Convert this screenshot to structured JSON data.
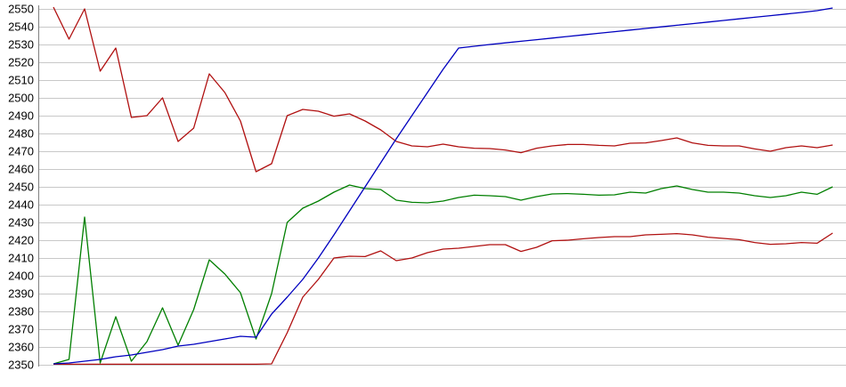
{
  "chart_data": {
    "type": "line",
    "title": "",
    "xlabel": "",
    "ylabel": "",
    "legend_position": "none",
    "grid": true,
    "grid_color": "#c8c8c8",
    "axis_line_color": "#808080",
    "background_color": "#ffffff",
    "x_axis": {
      "labels_visible": false,
      "point_count": 51
    },
    "y_axis": {
      "min": 2350,
      "max": 2550,
      "tick_step": 10,
      "tick_labels": [
        "2350",
        "2360",
        "2370",
        "2380",
        "2390",
        "2400",
        "2410",
        "2420",
        "2430",
        "2440",
        "2450",
        "2460",
        "2470",
        "2480",
        "2490",
        "2500",
        "2510",
        "2520",
        "2530",
        "2540",
        "2550"
      ]
    },
    "series": [
      {
        "name": "upper-red-line",
        "color": "#b01010",
        "values": [
          2551,
          2533,
          2550,
          2515,
          2528,
          2489,
          2490,
          2500,
          2475.5,
          2483,
          2513.5,
          2503,
          2487,
          2458.5,
          2463,
          2490,
          2493.5,
          2492.5,
          2489.7,
          2491,
          2487,
          2482,
          2475.5,
          2473,
          2472.5,
          2474,
          2472.5,
          2471.7,
          2471.5,
          2470.7,
          2469.2,
          2471.7,
          2473,
          2473.8,
          2473.8,
          2473.3,
          2473,
          2474.5,
          2474.7,
          2476,
          2477.5,
          2474.7,
          2473.3,
          2473,
          2473,
          2471.3,
          2470,
          2472,
          2473,
          2472,
          2473.5
        ]
      },
      {
        "name": "lower-red-line",
        "color": "#b01010",
        "values": [
          2350.3,
          2350.3,
          2350.3,
          2350.3,
          2350.3,
          2350.3,
          2350.3,
          2350.3,
          2350.3,
          2350.3,
          2350.3,
          2350.3,
          2350.3,
          2350.3,
          2350.5,
          2368,
          2388,
          2398,
          2410,
          2411,
          2410.8,
          2414,
          2408.5,
          2410,
          2413,
          2415,
          2415.5,
          2416.5,
          2417.5,
          2417.5,
          2413.7,
          2416,
          2419.7,
          2420,
          2420.8,
          2421.5,
          2422,
          2422,
          2423,
          2423.3,
          2423.7,
          2423,
          2421.7,
          2421,
          2420.3,
          2418.7,
          2417.7,
          2418,
          2418.7,
          2418.3,
          2424
        ]
      },
      {
        "name": "green-line",
        "color": "#007f00",
        "values": [
          2350.5,
          2353,
          2433,
          2351,
          2377,
          2352,
          2363,
          2382,
          2361,
          2381,
          2409,
          2401,
          2390.5,
          2364.5,
          2390,
          2430,
          2438,
          2442,
          2447,
          2451,
          2449,
          2448.5,
          2442.5,
          2441.3,
          2441,
          2442,
          2444,
          2445.3,
          2445,
          2444.5,
          2442.5,
          2444.5,
          2446,
          2446.2,
          2445.8,
          2445.3,
          2445.5,
          2447,
          2446.5,
          2449,
          2450.5,
          2448.5,
          2447,
          2447,
          2446.5,
          2445,
          2444,
          2445,
          2447,
          2445.8,
          2450
        ]
      },
      {
        "name": "blue-line",
        "color": "#0000bf",
        "values": [
          2350.5,
          2351,
          2352,
          2353,
          2354.5,
          2355.5,
          2357,
          2358.5,
          2360.5,
          2361.5,
          2363,
          2364.5,
          2366,
          2365.5,
          2378.5,
          2388,
          2398,
          2410,
          2423,
          2436.5,
          2450,
          2463.5,
          2477,
          2490,
          2503,
          2516,
          2528,
          2529,
          2530,
          2530.9,
          2531.8,
          2532.7,
          2533.6,
          2534.5,
          2535.4,
          2536.3,
          2537.2,
          2538.1,
          2539,
          2539.9,
          2540.8,
          2541.7,
          2542.6,
          2543.5,
          2544.4,
          2545.3,
          2546.2,
          2547.1,
          2548,
          2549,
          2550.5
        ]
      }
    ],
    "plot_layout_note": "no x tick labels, no legend, no title; horizontal gridlines only"
  }
}
